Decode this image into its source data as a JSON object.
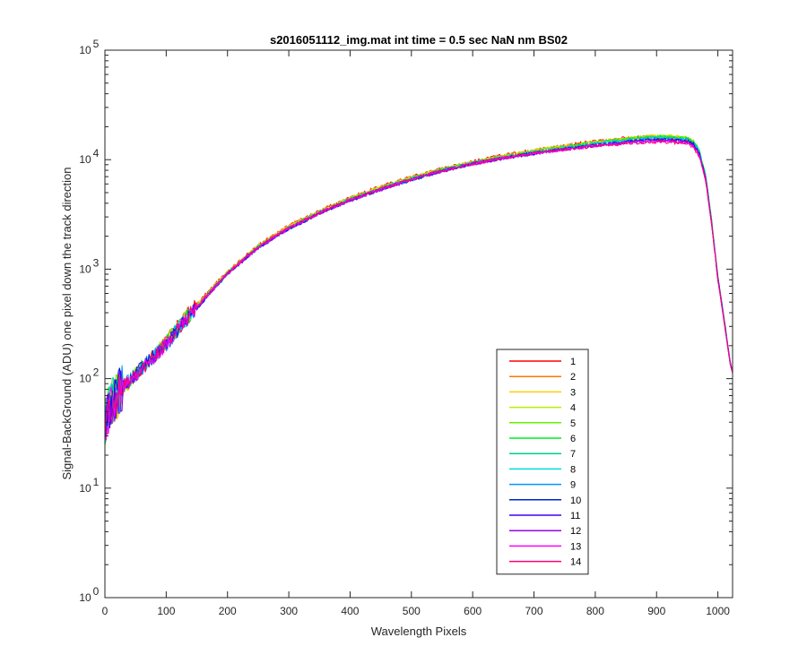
{
  "chart_data": {
    "type": "line",
    "title": "s2016051112_img.mat int time = 0.5 sec  NaN nm BS02",
    "xlabel": "Wavelength Pixels",
    "ylabel": "Signal-BackGround (ADU) one pixel down the track direction",
    "xlim": [
      0,
      1024
    ],
    "ylim": [
      1,
      100000
    ],
    "yscale": "log",
    "x_ticks": [
      0,
      100,
      200,
      300,
      400,
      500,
      600,
      700,
      800,
      900,
      1000
    ],
    "y_ticks": [
      {
        "value": 1,
        "base": "10",
        "exp": "0"
      },
      {
        "value": 10,
        "base": "10",
        "exp": "1"
      },
      {
        "value": 100,
        "base": "10",
        "exp": "2"
      },
      {
        "value": 1000,
        "base": "10",
        "exp": "3"
      },
      {
        "value": 10000,
        "base": "10",
        "exp": "4"
      },
      {
        "value": 100000,
        "base": "10",
        "exp": "5"
      }
    ],
    "grid": false,
    "legend_position": "lower-right-inside",
    "x": [
      0,
      5,
      10,
      20,
      30,
      40,
      50,
      75,
      100,
      125,
      150,
      175,
      200,
      250,
      300,
      350,
      400,
      450,
      500,
      550,
      600,
      650,
      700,
      750,
      800,
      850,
      875,
      900,
      925,
      950,
      960,
      970,
      980,
      990,
      1000,
      1010,
      1020,
      1024
    ],
    "series": [
      {
        "name": "1",
        "color": "#ff0000",
        "values": [
          40,
          50,
          60,
          70,
          85,
          95,
          110,
          150,
          220,
          330,
          480,
          680,
          950,
          1650,
          2500,
          3400,
          4500,
          5700,
          7000,
          8300,
          9600,
          11000,
          12300,
          13500,
          14700,
          15800,
          16000,
          16000,
          15600,
          15000,
          13800,
          11000,
          6500,
          2500,
          800,
          350,
          140,
          115
        ]
      },
      {
        "name": "2",
        "color": "#ff7700",
        "values": [
          40,
          50,
          60,
          70,
          85,
          95,
          110,
          150,
          218,
          328,
          475,
          675,
          945,
          1640,
          2480,
          3380,
          4470,
          5650,
          6950,
          8250,
          9550,
          10900,
          12200,
          13400,
          14600,
          15700,
          16100,
          16300,
          16000,
          15400,
          14200,
          11400,
          6800,
          2600,
          820,
          355,
          140,
          115
        ]
      },
      {
        "name": "3",
        "color": "#ffcc00",
        "values": [
          40,
          50,
          60,
          70,
          85,
          95,
          110,
          150,
          216,
          325,
          470,
          670,
          940,
          1630,
          2460,
          3360,
          4440,
          5600,
          6900,
          8200,
          9500,
          10800,
          12100,
          13300,
          14500,
          15600,
          16200,
          16500,
          16400,
          15800,
          14700,
          11800,
          7000,
          2700,
          840,
          360,
          140,
          115
        ]
      },
      {
        "name": "4",
        "color": "#bbee00",
        "values": [
          40,
          50,
          60,
          70,
          85,
          95,
          110,
          150,
          214,
          322,
          465,
          665,
          935,
          1620,
          2440,
          3340,
          4410,
          5560,
          6850,
          8150,
          9450,
          10700,
          12000,
          13200,
          14400,
          15500,
          16100,
          16400,
          16300,
          15800,
          14800,
          12000,
          7200,
          2750,
          850,
          360,
          140,
          115
        ]
      },
      {
        "name": "5",
        "color": "#66ee00",
        "values": [
          40,
          50,
          60,
          70,
          85,
          95,
          110,
          150,
          212,
          320,
          460,
          660,
          930,
          1610,
          2420,
          3320,
          4380,
          5520,
          6800,
          8100,
          9400,
          10650,
          11900,
          13100,
          14300,
          15400,
          16000,
          16300,
          16200,
          15700,
          14800,
          12100,
          7300,
          2800,
          860,
          365,
          140,
          115
        ]
      },
      {
        "name": "6",
        "color": "#00ee22",
        "values": [
          40,
          50,
          60,
          70,
          85,
          95,
          110,
          150,
          210,
          318,
          455,
          655,
          925,
          1600,
          2400,
          3300,
          4350,
          5480,
          6750,
          8050,
          9350,
          10600,
          11800,
          13000,
          14200,
          15300,
          15800,
          16100,
          16000,
          15600,
          14700,
          12000,
          7200,
          2780,
          850,
          360,
          140,
          115
        ]
      },
      {
        "name": "7",
        "color": "#00cc88",
        "values": [
          40,
          50,
          60,
          70,
          85,
          95,
          110,
          150,
          208,
          315,
          450,
          650,
          920,
          1590,
          2380,
          3280,
          4320,
          5440,
          6700,
          8000,
          9300,
          10500,
          11700,
          12900,
          14100,
          15100,
          15600,
          15900,
          15800,
          15400,
          14500,
          11900,
          7100,
          2750,
          845,
          358,
          140,
          115
        ]
      },
      {
        "name": "8",
        "color": "#00dddd",
        "values": [
          40,
          50,
          60,
          70,
          85,
          95,
          110,
          150,
          206,
          312,
          445,
          645,
          915,
          1580,
          2360,
          3260,
          4290,
          5400,
          6650,
          7950,
          9250,
          10450,
          11600,
          12800,
          13900,
          14900,
          15400,
          15700,
          15600,
          15200,
          14300,
          11700,
          7000,
          2700,
          840,
          355,
          140,
          115
        ]
      },
      {
        "name": "9",
        "color": "#0099ff",
        "values": [
          40,
          50,
          60,
          70,
          85,
          95,
          110,
          150,
          204,
          310,
          440,
          640,
          910,
          1570,
          2340,
          3240,
          4260,
          5360,
          6600,
          7900,
          9200,
          10400,
          11500,
          12600,
          13700,
          14700,
          15200,
          15500,
          15400,
          15000,
          14100,
          11500,
          6900,
          2650,
          830,
          352,
          140,
          115
        ]
      },
      {
        "name": "10",
        "color": "#0022cc",
        "values": [
          40,
          50,
          60,
          70,
          85,
          95,
          110,
          150,
          202,
          308,
          435,
          635,
          905,
          1560,
          2320,
          3220,
          4230,
          5320,
          6550,
          7850,
          9100,
          10300,
          11400,
          12500,
          13500,
          14500,
          15000,
          15300,
          15200,
          14800,
          13900,
          11300,
          6800,
          2600,
          820,
          350,
          140,
          115
        ]
      },
      {
        "name": "11",
        "color": "#4400ee",
        "values": [
          40,
          50,
          60,
          70,
          85,
          95,
          110,
          150,
          203,
          309,
          438,
          638,
          908,
          1565,
          2330,
          3230,
          4240,
          5330,
          6560,
          7860,
          9120,
          10320,
          11420,
          12480,
          13450,
          14400,
          14900,
          15100,
          15000,
          14600,
          13700,
          11100,
          6700,
          2580,
          815,
          348,
          140,
          115
        ]
      },
      {
        "name": "12",
        "color": "#9900ee",
        "values": [
          40,
          50,
          60,
          70,
          85,
          95,
          110,
          150,
          205,
          311,
          442,
          642,
          912,
          1572,
          2345,
          3245,
          4255,
          5345,
          6580,
          7880,
          9140,
          10340,
          11440,
          12460,
          13400,
          14300,
          14700,
          14900,
          14800,
          14400,
          13500,
          10900,
          6600,
          2550,
          810,
          345,
          140,
          115
        ]
      },
      {
        "name": "13",
        "color": "#ff00ff",
        "values": [
          40,
          50,
          60,
          70,
          85,
          95,
          110,
          150,
          208,
          314,
          448,
          648,
          918,
          1585,
          2365,
          3265,
          4280,
          5370,
          6600,
          7900,
          9160,
          10360,
          11460,
          12440,
          13350,
          14200,
          14500,
          14700,
          14600,
          14200,
          13300,
          10700,
          6500,
          2520,
          805,
          342,
          140,
          115
        ]
      },
      {
        "name": "14",
        "color": "#ff0077",
        "values": [
          40,
          50,
          60,
          70,
          85,
          95,
          110,
          150,
          211,
          317,
          453,
          653,
          923,
          1595,
          2380,
          3280,
          4300,
          5390,
          6620,
          7920,
          9180,
          10380,
          11480,
          12420,
          13300,
          14100,
          14400,
          14500,
          14400,
          14000,
          13100,
          10500,
          6400,
          2500,
          800,
          340,
          140,
          115
        ]
      }
    ]
  }
}
